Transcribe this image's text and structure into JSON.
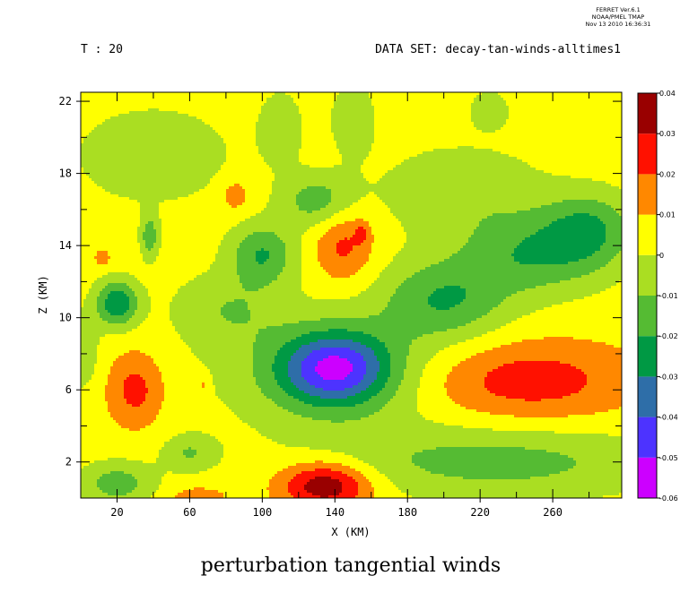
{
  "header": {
    "ferret_lines": [
      "FERRET  Ver.6.1",
      "NOAA/PMEL TMAP",
      "Nov 13 2010 16:36:31"
    ],
    "time_label": "T : 20",
    "dataset_label": "DATA SET: decay-tan-winds-alltimes1"
  },
  "chart_data": {
    "type": "heatmap",
    "title": "perturbation tangential winds",
    "xlabel": "X (KM)",
    "ylabel": "Z (KM)",
    "xlim": [
      0,
      298
    ],
    "ylim": [
      0,
      22.5
    ],
    "x_ticks": [
      20,
      60,
      100,
      140,
      180,
      220,
      260
    ],
    "y_ticks": [
      2,
      6,
      10,
      14,
      18,
      22
    ],
    "colorbar": {
      "levels": [
        -0.06,
        -0.05,
        -0.04,
        -0.03,
        -0.02,
        -0.01,
        0,
        0.01,
        0.02,
        0.03,
        0.04
      ],
      "level_labels": [
        "-0.06",
        "-0.05",
        "-0.04",
        "-0.03",
        "-0.02",
        "-0.01",
        "0",
        "0.01",
        "0.02",
        "0.03",
        "0.04"
      ],
      "colors": [
        "#cc00ff",
        "#4d33ff",
        "#2e6ea8",
        "#009944",
        "#55bb33",
        "#aade22",
        "#ffff00",
        "#ff8800",
        "#ff1100",
        "#990000"
      ]
    },
    "background_value": 0.005,
    "features": [
      {
        "x": 140,
        "y": 7.2,
        "sx": 30,
        "sy": 2.0,
        "value": -0.038
      },
      {
        "x": 140,
        "y": 7.0,
        "sx": 60,
        "sy": 3.2,
        "value": -0.013
      },
      {
        "x": 200,
        "y": 11.0,
        "sx": 35,
        "sy": 2.2,
        "value": -0.019
      },
      {
        "x": 250,
        "y": 13.5,
        "sx": 40,
        "sy": 2.2,
        "value": -0.018
      },
      {
        "x": 280,
        "y": 15.0,
        "sx": 25,
        "sy": 2.0,
        "value": -0.017
      },
      {
        "x": 100,
        "y": 13.5,
        "sx": 18,
        "sy": 1.7,
        "value": -0.02
      },
      {
        "x": 130,
        "y": 16.5,
        "sx": 20,
        "sy": 1.5,
        "value": -0.015
      },
      {
        "x": 20,
        "y": 10.8,
        "sx": 12,
        "sy": 1.3,
        "value": -0.028
      },
      {
        "x": 38,
        "y": 14.5,
        "sx": 5,
        "sy": 1.2,
        "value": -0.017
      },
      {
        "x": 145,
        "y": 14.0,
        "sx": 16,
        "sy": 2.0,
        "value": 0.023
      },
      {
        "x": 155,
        "y": 14.7,
        "sx": 4,
        "sy": 0.6,
        "value": 0.017
      },
      {
        "x": 30,
        "y": 6.0,
        "sx": 15,
        "sy": 2.0,
        "value": 0.024
      },
      {
        "x": 245,
        "y": 6.5,
        "sx": 60,
        "sy": 2.2,
        "value": 0.026
      },
      {
        "x": 135,
        "y": 0.7,
        "sx": 25,
        "sy": 1.3,
        "value": 0.04
      },
      {
        "x": 85,
        "y": 16.8,
        "sx": 9,
        "sy": 1.0,
        "value": 0.016
      },
      {
        "x": 12,
        "y": 13.3,
        "sx": 5,
        "sy": 0.6,
        "value": 0.015
      },
      {
        "x": 65,
        "y": 0.0,
        "sx": 15,
        "sy": 0.6,
        "value": 0.018
      },
      {
        "x": 68,
        "y": 6.3,
        "sx": 3,
        "sy": 0.6,
        "value": 0.015
      },
      {
        "x": 230,
        "y": 2.0,
        "sx": 90,
        "sy": 2.0,
        "value": -0.014
      },
      {
        "x": 20,
        "y": 0.8,
        "sx": 20,
        "sy": 1.2,
        "value": -0.015
      },
      {
        "x": 60,
        "y": 2.5,
        "sx": 15,
        "sy": 1.0,
        "value": -0.01
      },
      {
        "x": 40,
        "y": 19.0,
        "sx": 40,
        "sy": 2.5,
        "value": -0.009
      },
      {
        "x": 80,
        "y": 10.5,
        "sx": 30,
        "sy": 2.0,
        "value": -0.008
      },
      {
        "x": 210,
        "y": 17.0,
        "sx": 45,
        "sy": 2.5,
        "value": -0.008
      },
      {
        "x": 0,
        "y": 8.0,
        "sx": 10,
        "sy": 2.0,
        "value": -0.008
      },
      {
        "x": 110,
        "y": 20.5,
        "sx": 12,
        "sy": 2.0,
        "value": -0.008
      },
      {
        "x": 150,
        "y": 21.0,
        "sx": 12,
        "sy": 2.0,
        "value": -0.008
      },
      {
        "x": 225,
        "y": 21.5,
        "sx": 10,
        "sy": 1.0,
        "value": -0.009
      }
    ]
  }
}
